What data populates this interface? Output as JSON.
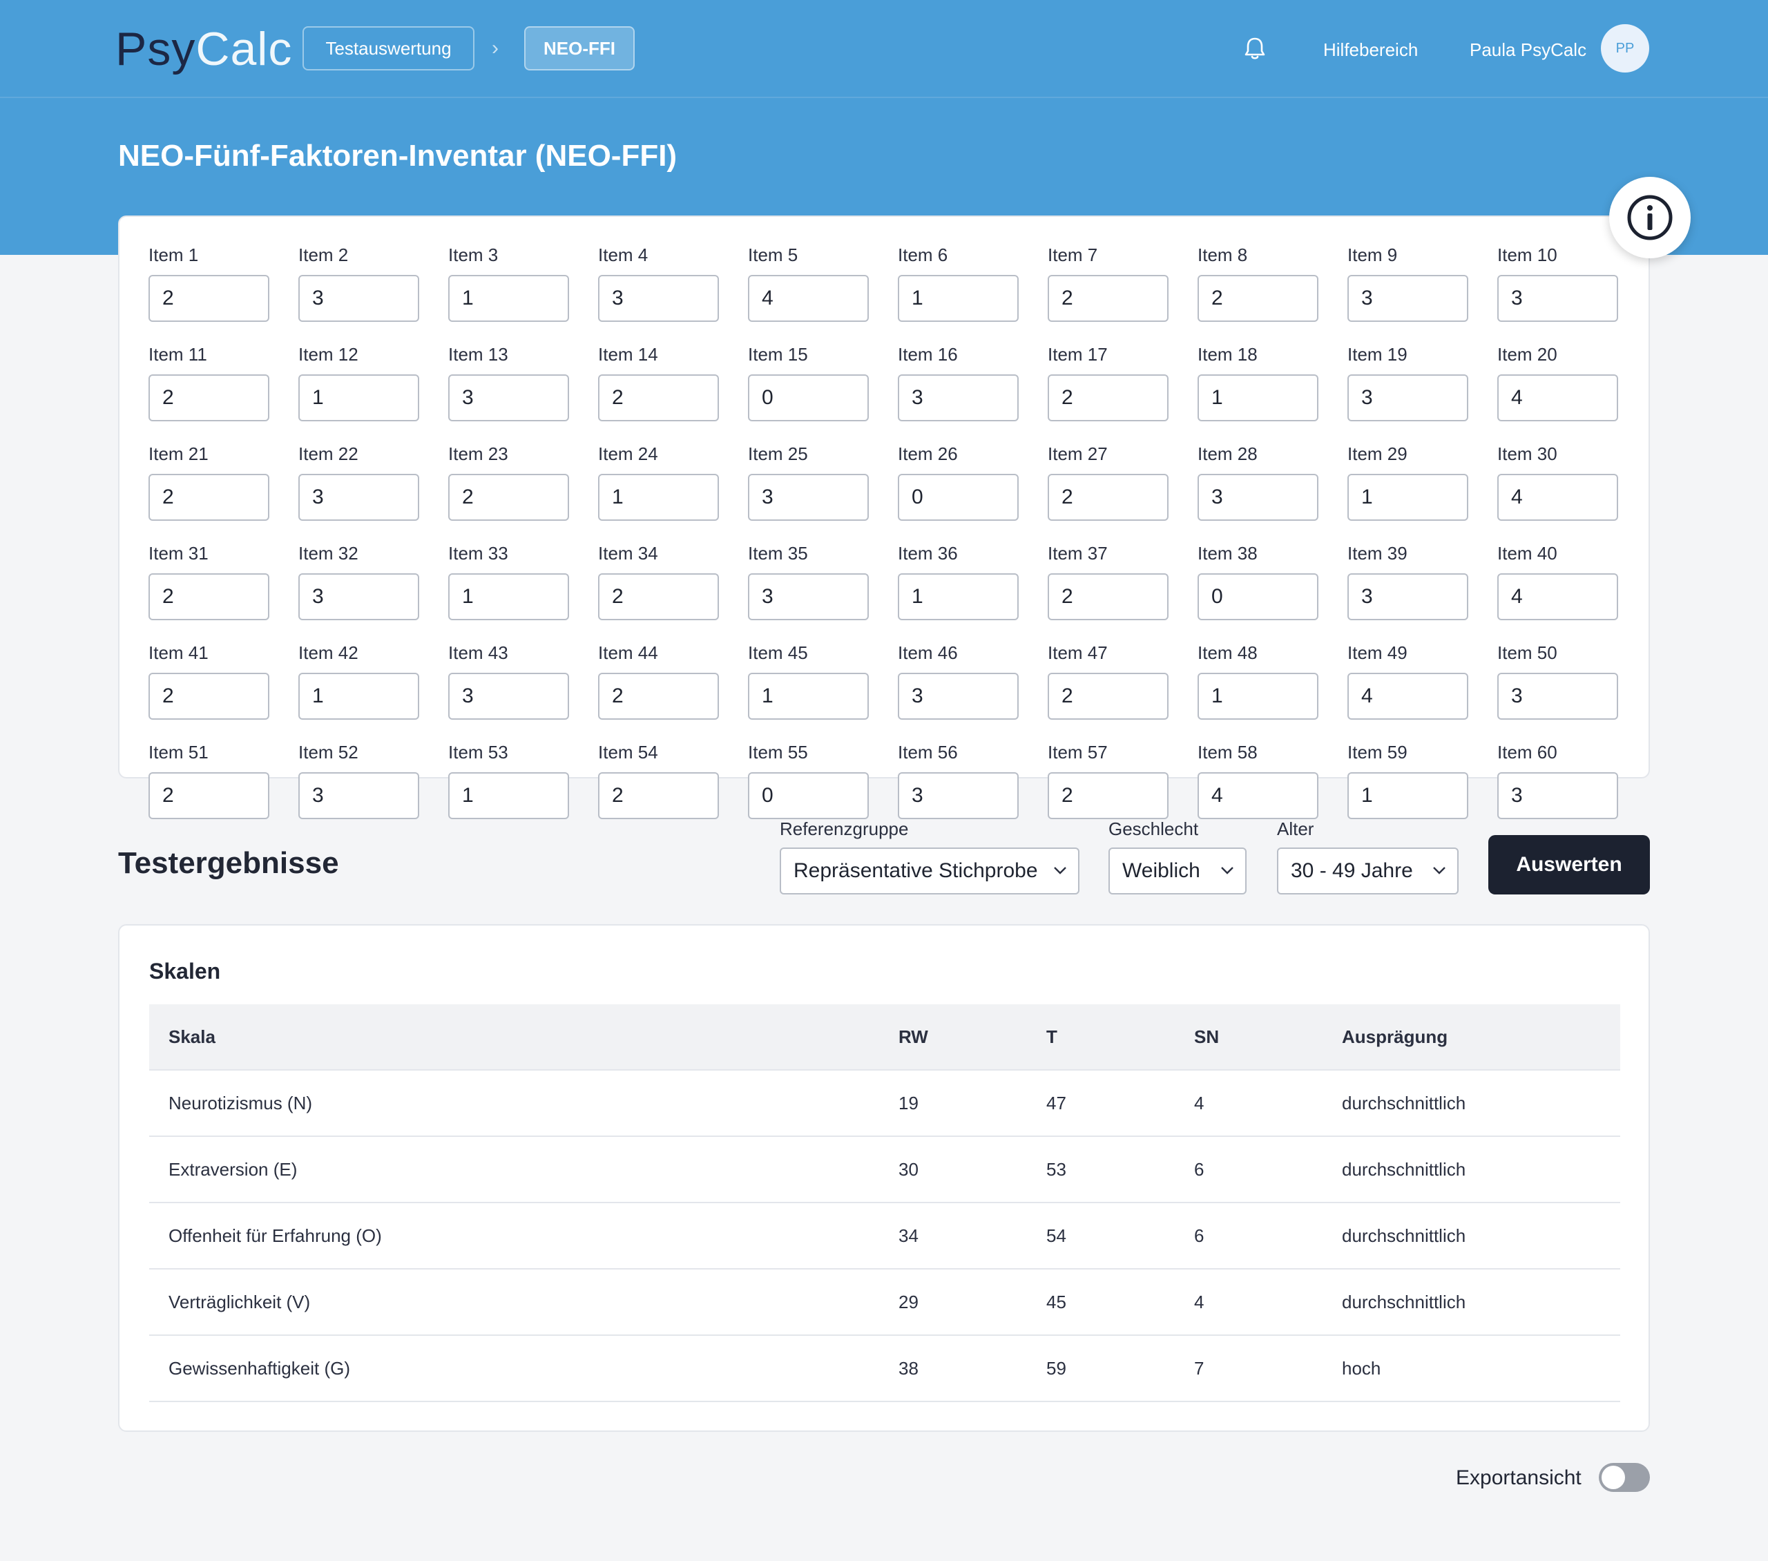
{
  "header": {
    "logo_part1": "Psy",
    "logo_part2": "Calc",
    "breadcrumb": [
      "Testauswertung",
      "NEO-FFI"
    ],
    "breadcrumb_separator": "›",
    "help_label": "Hilfebereich",
    "user_name": "Paula PsyCalc",
    "avatar_initials": "PP",
    "accent_color": "#4a9ed8"
  },
  "page_title": "NEO-Fünf-Faktoren-Inventar (NEO-FFI)",
  "items": [
    {
      "label": "Item 1",
      "value": "2"
    },
    {
      "label": "Item 2",
      "value": "3"
    },
    {
      "label": "Item 3",
      "value": "1"
    },
    {
      "label": "Item 4",
      "value": "3"
    },
    {
      "label": "Item 5",
      "value": "4"
    },
    {
      "label": "Item 6",
      "value": "1"
    },
    {
      "label": "Item 7",
      "value": "2"
    },
    {
      "label": "Item 8",
      "value": "2"
    },
    {
      "label": "Item 9",
      "value": "3"
    },
    {
      "label": "Item 10",
      "value": "3"
    },
    {
      "label": "Item 11",
      "value": "2"
    },
    {
      "label": "Item 12",
      "value": "1"
    },
    {
      "label": "Item 13",
      "value": "3"
    },
    {
      "label": "Item 14",
      "value": "2"
    },
    {
      "label": "Item 15",
      "value": "0"
    },
    {
      "label": "Item 16",
      "value": "3"
    },
    {
      "label": "Item 17",
      "value": "2"
    },
    {
      "label": "Item 18",
      "value": "1"
    },
    {
      "label": "Item 19",
      "value": "3"
    },
    {
      "label": "Item 20",
      "value": "4"
    },
    {
      "label": "Item 21",
      "value": "2"
    },
    {
      "label": "Item 22",
      "value": "3"
    },
    {
      "label": "Item 23",
      "value": "2"
    },
    {
      "label": "Item 24",
      "value": "1"
    },
    {
      "label": "Item 25",
      "value": "3"
    },
    {
      "label": "Item 26",
      "value": "0"
    },
    {
      "label": "Item 27",
      "value": "2"
    },
    {
      "label": "Item 28",
      "value": "3"
    },
    {
      "label": "Item 29",
      "value": "1"
    },
    {
      "label": "Item 30",
      "value": "4"
    },
    {
      "label": "Item 31",
      "value": "2"
    },
    {
      "label": "Item 32",
      "value": "3"
    },
    {
      "label": "Item 33",
      "value": "1"
    },
    {
      "label": "Item 34",
      "value": "2"
    },
    {
      "label": "Item 35",
      "value": "3"
    },
    {
      "label": "Item 36",
      "value": "1"
    },
    {
      "label": "Item 37",
      "value": "2"
    },
    {
      "label": "Item 38",
      "value": "0"
    },
    {
      "label": "Item 39",
      "value": "3"
    },
    {
      "label": "Item 40",
      "value": "4"
    },
    {
      "label": "Item 41",
      "value": "2"
    },
    {
      "label": "Item 42",
      "value": "1"
    },
    {
      "label": "Item 43",
      "value": "3"
    },
    {
      "label": "Item 44",
      "value": "2"
    },
    {
      "label": "Item 45",
      "value": "1"
    },
    {
      "label": "Item 46",
      "value": "3"
    },
    {
      "label": "Item 47",
      "value": "2"
    },
    {
      "label": "Item 48",
      "value": "1"
    },
    {
      "label": "Item 49",
      "value": "4"
    },
    {
      "label": "Item 50",
      "value": "3"
    },
    {
      "label": "Item 51",
      "value": "2"
    },
    {
      "label": "Item 52",
      "value": "3"
    },
    {
      "label": "Item 53",
      "value": "1"
    },
    {
      "label": "Item 54",
      "value": "2"
    },
    {
      "label": "Item 55",
      "value": "0"
    },
    {
      "label": "Item 56",
      "value": "3"
    },
    {
      "label": "Item 57",
      "value": "2"
    },
    {
      "label": "Item 58",
      "value": "4"
    },
    {
      "label": "Item 59",
      "value": "1"
    },
    {
      "label": "Item 60",
      "value": "3"
    }
  ],
  "results": {
    "title": "Testergebnisse",
    "reference_label": "Referenzgruppe",
    "reference_value": "Repräsentative Stichprobe",
    "sex_label": "Geschlecht",
    "sex_value": "Weiblich",
    "age_label": "Alter",
    "age_value": "30 - 49 Jahre",
    "evaluate_label": "Auswerten"
  },
  "scales": {
    "title": "Skalen",
    "headers": [
      "Skala",
      "RW",
      "T",
      "SN",
      "Ausprägung"
    ],
    "rows": [
      [
        "Neurotizismus (N)",
        "19",
        "47",
        "4",
        "durchschnittlich"
      ],
      [
        "Extraversion (E)",
        "30",
        "53",
        "6",
        "durchschnittlich"
      ],
      [
        "Offenheit für Erfahrung (O)",
        "34",
        "54",
        "6",
        "durchschnittlich"
      ],
      [
        "Verträglichkeit (V)",
        "29",
        "45",
        "4",
        "durchschnittlich"
      ],
      [
        "Gewissenhaftigkeit (G)",
        "38",
        "59",
        "7",
        "hoch"
      ]
    ]
  },
  "export": {
    "label": "Exportansicht",
    "enabled": false
  }
}
